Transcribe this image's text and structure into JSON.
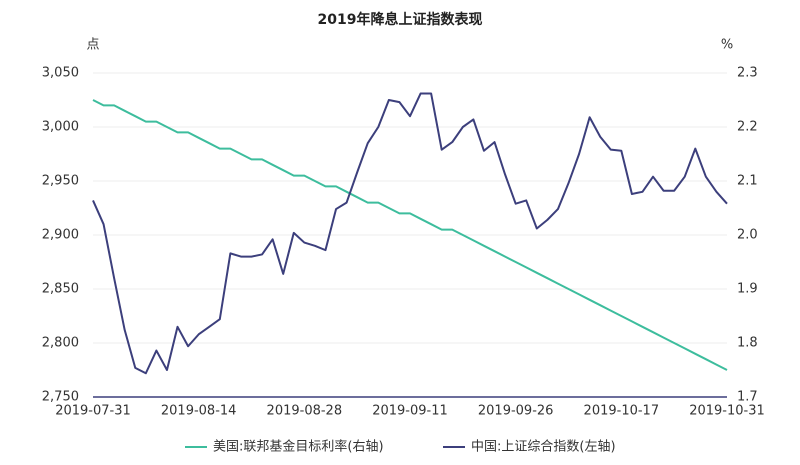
{
  "chart_data": {
    "type": "line",
    "title": "2019年降息上证指数表现",
    "y_label": "点",
    "y2_label": "%",
    "categories": [
      "2019-07-31",
      null,
      null,
      null,
      null,
      null,
      null,
      null,
      null,
      null,
      "2019-08-14",
      null,
      null,
      null,
      null,
      null,
      null,
      null,
      null,
      null,
      "2019-08-28",
      null,
      null,
      null,
      null,
      null,
      null,
      null,
      null,
      null,
      "2019-09-11",
      null,
      null,
      null,
      null,
      null,
      null,
      null,
      null,
      null,
      "2019-09-26",
      null,
      null,
      null,
      null,
      null,
      null,
      null,
      null,
      null,
      "2019-10-17",
      null,
      null,
      null,
      null,
      null,
      null,
      null,
      null,
      null,
      "2019-10-31"
    ],
    "series": [
      {
        "name": "美国:联邦基金目标利率(右轴)",
        "color": "#3dbd9d",
        "axis": "y2",
        "values": [
          2.25,
          2.24,
          2.24,
          2.23,
          2.22,
          2.21,
          2.21,
          2.2,
          2.19,
          2.19,
          2.18,
          2.17,
          2.16,
          2.16,
          2.15,
          2.14,
          2.14,
          2.13,
          2.12,
          2.11,
          2.11,
          2.1,
          2.09,
          2.09,
          2.08,
          2.07,
          2.06,
          2.06,
          2.05,
          2.04,
          2.04,
          2.03,
          2.02,
          2.01,
          2.01,
          2.0,
          1.99,
          1.98,
          1.97,
          1.96,
          1.95,
          1.94,
          1.93,
          1.92,
          1.91,
          1.9,
          1.89,
          1.88,
          1.87,
          1.86,
          1.85,
          1.84,
          1.83,
          1.82,
          1.81,
          1.8,
          1.79,
          1.78,
          1.77,
          1.76,
          1.75
        ]
      },
      {
        "name": "中国:上证综合指数(左轴)",
        "color": "#3c3f7c",
        "values": [
          2932,
          2910,
          2860,
          2812,
          2777,
          2772,
          2793,
          2775,
          2815,
          2797,
          2808,
          2815,
          2822,
          2883,
          2880,
          2880,
          2882,
          2896,
          2864,
          2902,
          2893,
          2890,
          2886,
          2924,
          2930,
          2958,
          2985,
          3000,
          3025,
          3023,
          3010,
          3031,
          3031,
          2979,
          2986,
          3000,
          3007,
          2978,
          2986,
          2956,
          2929,
          2932,
          2906,
          2914,
          2924,
          2948,
          2975,
          3009,
          2991,
          2979,
          2978,
          2938,
          2940,
          2954,
          2941,
          2941,
          2954,
          2980,
          2954,
          2940,
          2929
        ]
      }
    ],
    "ylim": [
      2750,
      3050
    ],
    "yticks": [
      {
        "value": 2750,
        "label": "2,750"
      },
      {
        "value": 2800,
        "label": "2,800"
      },
      {
        "value": 2850,
        "label": "2,850"
      },
      {
        "value": 2900,
        "label": "2,900"
      },
      {
        "value": 2950,
        "label": "2,950"
      },
      {
        "value": 3000,
        "label": "3,000"
      },
      {
        "value": 3050,
        "label": "3,050"
      }
    ],
    "y2lim": [
      1.7,
      2.3
    ],
    "y2ticks": [
      1.7,
      1.8,
      1.9,
      {
        "value": 2,
        "label": "2.0"
      },
      2.1,
      2.2,
      2.3
    ],
    "grid": true,
    "legend": "bottom"
  }
}
